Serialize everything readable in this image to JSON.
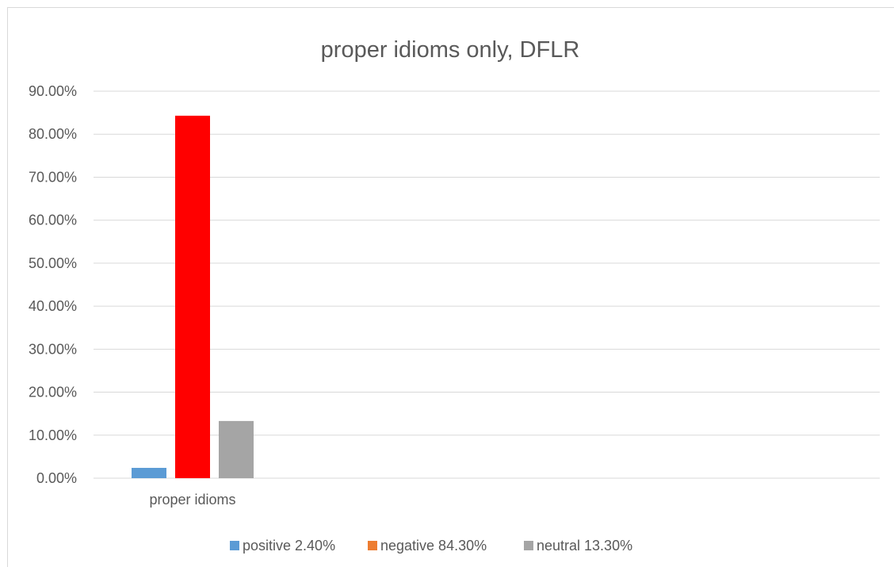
{
  "chart_data": {
    "type": "bar",
    "title": "proper idioms only, DFLR",
    "categories": [
      "proper idioms"
    ],
    "series": [
      {
        "name": "positive 2.40%",
        "values": [
          0.024
        ],
        "color": "#5b9bd5"
      },
      {
        "name": "negative 84.30%",
        "values": [
          0.843
        ],
        "color": "#ff0000",
        "legend_color": "#ed7d31"
      },
      {
        "name": "neutral 13.30%",
        "values": [
          0.133
        ],
        "color": "#a5a5a5"
      }
    ],
    "ylim": [
      0,
      0.9
    ],
    "yticks": [
      0,
      0.1,
      0.2,
      0.3,
      0.4,
      0.5,
      0.6,
      0.7,
      0.8,
      0.9
    ],
    "ytick_labels": [
      "0.00%",
      "10.00%",
      "20.00%",
      "30.00%",
      "40.00%",
      "50.00%",
      "60.00%",
      "70.00%",
      "80.00%",
      "90.00%"
    ],
    "xlabel": "",
    "ylabel": "",
    "grid": true,
    "legend_position": "bottom"
  }
}
